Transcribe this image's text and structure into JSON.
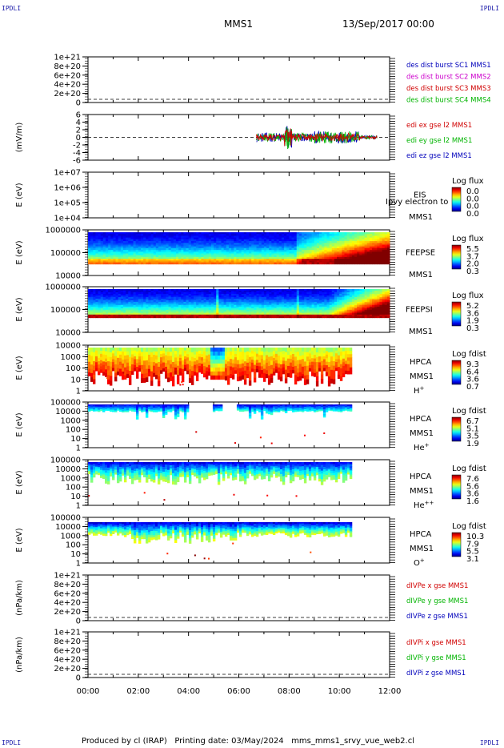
{
  "corner_label": "IPDLI",
  "header": {
    "spacecraft": "MMS1",
    "date": "13/Sep/2017 00:00"
  },
  "footer": {
    "text": "Produced by cl (IRAP)   Printing date: 03/May/2024   mms_mms1_srvy_vue_web2.cl"
  },
  "colors": {
    "red": "#d00000",
    "magenta": "#cc00cc",
    "green": "#00b400",
    "blue": "#0000bb"
  },
  "chart_data": {
    "type": "line",
    "x_axis": {
      "range": [
        "00:00",
        "12:00"
      ],
      "ticks": [
        "00:00",
        "02:00",
        "04:00",
        "06:00",
        "08:00",
        "10:00",
        "12:00"
      ]
    },
    "panels": [
      {
        "id": "dist",
        "kind": "line",
        "ylabel": "",
        "log": false,
        "yticks": [
          "1e+21",
          "8e+20",
          "6e+20",
          "4e+20",
          "2e+20",
          "0"
        ],
        "dashed_zero": true,
        "legend": [
          {
            "text": "des dist burst SC1 MMS1",
            "color": "#0000bb"
          },
          {
            "text": "des dist burst SC2 MMS2",
            "color": "#cc00cc"
          },
          {
            "text": "des dist burst SC3 MMS3",
            "color": "#d00000"
          },
          {
            "text": "des dist burst SC4 MMS4",
            "color": "#00b400"
          }
        ]
      },
      {
        "id": "edi",
        "kind": "line",
        "ylabel": "(mV/m)",
        "log": false,
        "yticks": [
          "6",
          "4",
          "2",
          "0",
          "-2",
          "-4",
          "-6"
        ],
        "ylim": [
          -6,
          6
        ],
        "dashed_zero": true,
        "data_extent_hours": [
          6.7,
          11.5
        ],
        "legend": [
          {
            "text": "edi ex gse l2 MMS1",
            "color": "#d00000"
          },
          {
            "text": "edi ey gse l2 MMS1",
            "color": "#00b400"
          },
          {
            "text": "edi ez gse l2 MMS1",
            "color": "#0000bb"
          }
        ]
      },
      {
        "id": "eis",
        "kind": "spectrogram",
        "ylabel": "E (eV)",
        "yticks": [
          "1e+07",
          "1e+06",
          "1e+05",
          "1e+04"
        ],
        "labels": [
          "EIS",
          "MMS1"
        ],
        "overlay_text": "Ipvy electron to",
        "cbar_title": "Log flux",
        "cbar_ticks": [
          "0.0",
          "0.0",
          "0.0",
          "0.0"
        ],
        "empty": true
      },
      {
        "id": "feeps_e",
        "kind": "spectrogram",
        "ylabel": "E (eV)",
        "yticks": [
          "1000000",
          "100000",
          "10000"
        ],
        "labels": [
          "FEEPSE",
          "MMS1"
        ],
        "cbar_title": "Log flux",
        "cbar_ticks": [
          "5.5",
          "3.7",
          "2.0",
          "0.3"
        ]
      },
      {
        "id": "feeps_i",
        "kind": "spectrogram",
        "ylabel": "E (eV)",
        "yticks": [
          "1000000",
          "100000",
          "10000"
        ],
        "labels": [
          "FEEPSI",
          "MMS1"
        ],
        "cbar_title": "Log flux",
        "cbar_ticks": [
          "5.2",
          "3.6",
          "1.9",
          "0.3"
        ]
      },
      {
        "id": "hpca_h",
        "kind": "spectrogram",
        "ylabel": "E (eV)",
        "yticks": [
          "10000",
          "1000",
          "100",
          "10",
          "1"
        ],
        "labels": [
          "HPCA",
          "MMS1"
        ],
        "species": "H",
        "species_sup": "+",
        "cbar_title": "Log fdist",
        "cbar_ticks": [
          "9.3",
          "6.4",
          "3.6",
          "0.7"
        ]
      },
      {
        "id": "hpca_he",
        "kind": "spectrogram",
        "ylabel": "E (eV)",
        "yticks": [
          "100000",
          "10000",
          "1000",
          "100",
          "10",
          "1"
        ],
        "labels": [
          "HPCA",
          "MMS1"
        ],
        "species": "He",
        "species_sup": "+",
        "cbar_title": "Log fdist",
        "cbar_ticks": [
          "6.7",
          "5.1",
          "3.5",
          "1.9"
        ]
      },
      {
        "id": "hpca_he2",
        "kind": "spectrogram",
        "ylabel": "E (eV)",
        "yticks": [
          "100000",
          "10000",
          "1000",
          "100",
          "10",
          "1"
        ],
        "labels": [
          "HPCA",
          "MMS1"
        ],
        "species": "He",
        "species_sup": "++",
        "cbar_title": "Log fdist",
        "cbar_ticks": [
          "7.6",
          "5.6",
          "3.6",
          "1.6"
        ]
      },
      {
        "id": "hpca_o",
        "kind": "spectrogram",
        "ylabel": "E (eV)",
        "yticks": [
          "100000",
          "10000",
          "1000",
          "100",
          "10",
          "1"
        ],
        "labels": [
          "HPCA",
          "MMS1"
        ],
        "species": "O",
        "species_sup": "+",
        "cbar_title": "Log fdist",
        "cbar_ticks": [
          "10.3",
          "7.9",
          "5.5",
          "3.1"
        ]
      },
      {
        "id": "divpe",
        "kind": "line",
        "ylabel": "(nPa/km)",
        "yticks": [
          "1e+21",
          "8e+20",
          "6e+20",
          "4e+20",
          "2e+20",
          "0"
        ],
        "dashed_zero": true,
        "legend": [
          {
            "text": "dIVPe x gse MMS1",
            "color": "#d00000"
          },
          {
            "text": "dIVPe y gse MMS1",
            "color": "#00b400"
          },
          {
            "text": "dIVPe z gse MMS1",
            "color": "#0000bb"
          }
        ]
      },
      {
        "id": "divpi",
        "kind": "line",
        "ylabel": "(nPa/km)",
        "yticks": [
          "1e+21",
          "8e+20",
          "6e+20",
          "4e+20",
          "2e+20",
          "0"
        ],
        "dashed_zero": true,
        "legend": [
          {
            "text": "dIVPi x gse MMS1",
            "color": "#d00000"
          },
          {
            "text": "dIVPi y gse MMS1",
            "color": "#00b400"
          },
          {
            "text": "dIVPi z gse MMS1",
            "color": "#0000bb"
          }
        ]
      }
    ]
  }
}
